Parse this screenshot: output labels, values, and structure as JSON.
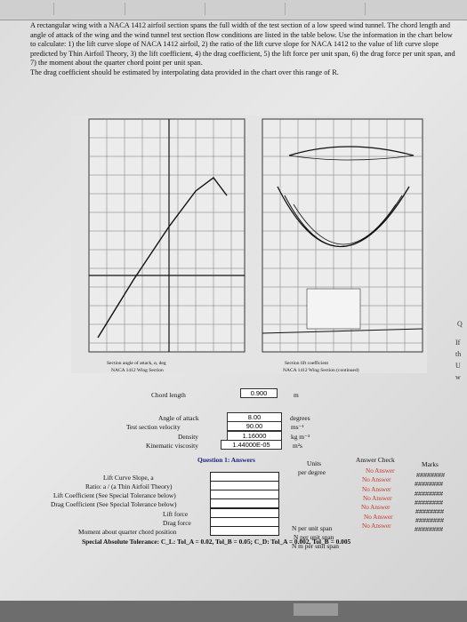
{
  "problem": {
    "paragraph": "A rectangular wing with a NACA 1412 airfoil section spans the full width of the test section of a low speed wind tunnel. The chord length and angle of attack of the wing and the wind tunnel test section flow conditions are listed in the table below. Use the information in the chart below to calculate: 1) the lift curve slope of NACA 1412 airfoil, 2) the ratio of the lift curve slope for NACA 1412 to the value of lift curve slope predicted by Thin Airfoil Theory, 3) the lift coefficient, 4) the drag coefficient, 5) the lift force per unit span, 6) the drag force per unit span, and 7) the moment about the quarter chord point per unit span.",
    "note": "The drag coefficient should be estimated by interpolating data provided in the chart over this range of R."
  },
  "chart_left_caption": "Section angle of attack, α, deg",
  "chart_left_sub": "NACA 1412 Wing Section",
  "chart_right_caption": "Section lift coefficient",
  "chart_right_sub": "NACA 1412 Wing Section (continued)",
  "inputs": {
    "chord_label": "Chord length",
    "chord_value": "0.900",
    "chord_unit": "m",
    "angle_label": "Angle of attack",
    "angle_value": "8.00",
    "angle_unit": "degrees",
    "velocity_label": "Test section velocity",
    "velocity_value": "90.00",
    "velocity_unit": "ms⁻¹",
    "density_label": "Density",
    "density_value": "1.16000",
    "density_unit": "kg m⁻³",
    "viscosity_label": "Kinematic viscosity",
    "viscosity_value": "1.44000E-05",
    "viscosity_unit": "m²s"
  },
  "answers": {
    "header": "Question 1: Answers",
    "units_header": "Units",
    "check_header": "Answer Check",
    "marks_header": "Marks",
    "rows": [
      {
        "label": "Lift Curve Slope, a",
        "unit": "per degree",
        "check": "No Answer",
        "marks": "########"
      },
      {
        "label": "Ratio: a / (a Thin Airfoil Theory)",
        "unit": "",
        "check": "No Answer",
        "marks": "########"
      },
      {
        "label": "Lift Coefficient (See Special Tolerance below)",
        "unit": "",
        "check": "No Answer",
        "marks": "########"
      },
      {
        "label": "Drag Coefficient (See Special Tolerance below)",
        "unit": "",
        "check": "No Answer",
        "marks": "########"
      },
      {
        "label": "Lift force",
        "unit": "N per unit span",
        "check": "No Answer",
        "marks": "########"
      },
      {
        "label": "Drag force",
        "unit": "N per unit span",
        "check": "No Answer",
        "marks": "########"
      },
      {
        "label": "Moment about quarter chord position",
        "unit": "N m per unit span",
        "check": "No Answer",
        "marks": "########"
      }
    ],
    "tolerance": "Special Absolute Tolerance: C_L: Tol_A = 0.02, Tol_B = 0.05; C_D: Tol_A = 0.002, Tol_B = 0.005"
  },
  "right_edge": [
    "Q",
    "If",
    "th",
    "U",
    "w"
  ]
}
